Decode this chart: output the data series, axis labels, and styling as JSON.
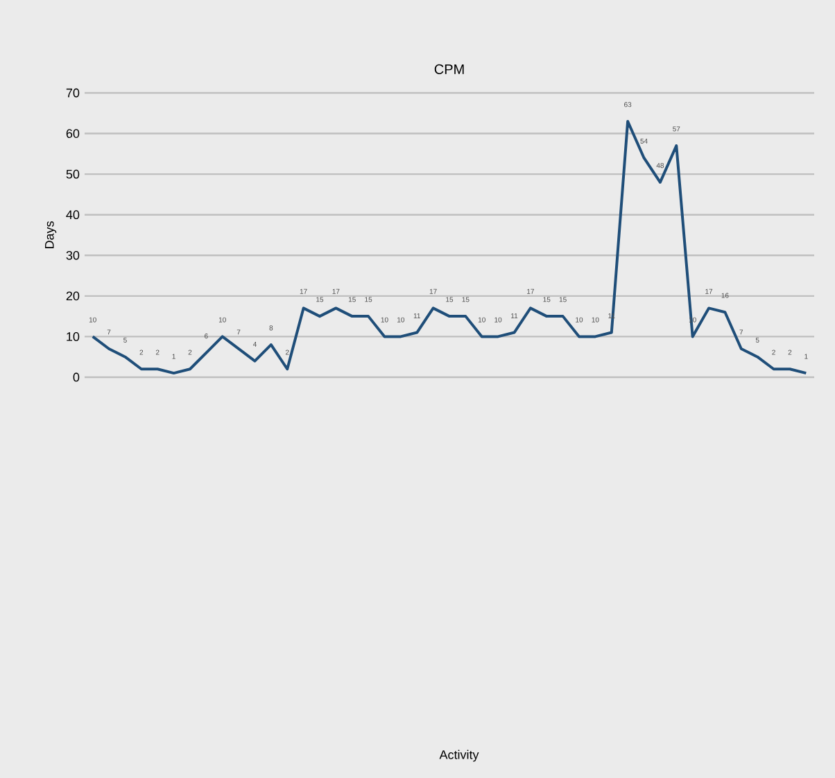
{
  "chart_data": {
    "type": "line",
    "title": "CPM",
    "annotations": [
      "Activity"
    ],
    "ylabel": "Days",
    "categories": [
      null,
      null,
      null,
      null,
      null,
      null,
      null,
      null,
      null,
      null,
      null,
      null,
      null,
      null,
      null,
      null,
      null,
      null,
      null,
      null,
      null,
      null,
      null,
      null,
      null,
      null,
      null,
      null,
      null,
      null,
      null,
      null,
      null,
      null,
      null,
      null,
      null,
      null,
      null,
      null,
      null,
      null,
      null,
      null,
      null
    ],
    "series": [
      {
        "color": "#1f4e79",
        "values": [
          10,
          7,
          5,
          2,
          2,
          1,
          2,
          6,
          10,
          7,
          4,
          8,
          2,
          17,
          15,
          17,
          15,
          15,
          10,
          10,
          11,
          17,
          15,
          15,
          10,
          10,
          11,
          17,
          15,
          15,
          10,
          10,
          11,
          63,
          54,
          48,
          57,
          10,
          17,
          16,
          7,
          5,
          2,
          2,
          1
        ]
      }
    ],
    "ylim": [
      0,
      70
    ],
    "yticks": [
      0,
      10,
      20,
      30,
      40,
      50,
      60,
      70
    ],
    "grid": "y",
    "data_labels": true
  }
}
